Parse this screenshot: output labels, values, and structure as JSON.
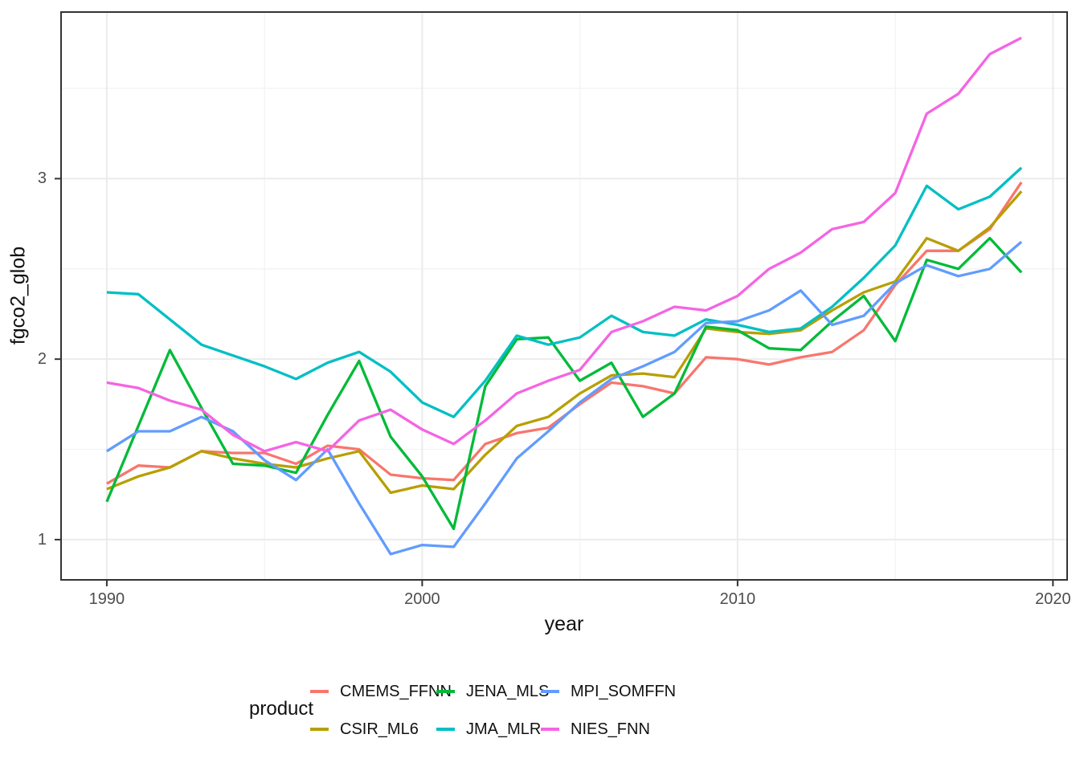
{
  "chart_data": {
    "type": "line",
    "title": "",
    "xlabel": "year",
    "ylabel": "fgco2_glob",
    "legend_title": "product",
    "legend_position": "bottom",
    "grid": true,
    "xlim": [
      1988.55,
      2020.45
    ],
    "ylim": [
      0.777,
      3.923
    ],
    "x_tick_labels": [
      "1990",
      "2000",
      "2010",
      "2020"
    ],
    "x_ticks": [
      1990,
      2000,
      2010,
      2020
    ],
    "x_minor_ticks": [
      1995,
      2005,
      2015
    ],
    "y_tick_labels": [
      "1",
      "2",
      "3"
    ],
    "y_ticks": [
      1,
      2,
      3
    ],
    "y_minor_ticks": [
      1.5,
      2.5,
      3.5
    ],
    "x": [
      1990,
      1991,
      1992,
      1993,
      1994,
      1995,
      1996,
      1997,
      1998,
      1999,
      2000,
      2001,
      2002,
      2003,
      2004,
      2005,
      2006,
      2007,
      2008,
      2009,
      2010,
      2011,
      2012,
      2013,
      2014,
      2015,
      2016,
      2017,
      2018,
      2019
    ],
    "series": [
      {
        "name": "CMEMS_FFNN",
        "color": "#F8766D",
        "values": [
          1.31,
          1.41,
          1.4,
          1.49,
          1.48,
          1.48,
          1.42,
          1.52,
          1.5,
          1.36,
          1.34,
          1.33,
          1.53,
          1.59,
          1.62,
          1.75,
          1.87,
          1.85,
          1.81,
          2.01,
          2.0,
          1.97,
          2.01,
          2.04,
          2.16,
          2.41,
          2.6,
          2.6,
          2.72,
          2.98
        ]
      },
      {
        "name": "CSIR_ML6",
        "color": "#B79F00",
        "values": [
          1.28,
          1.35,
          1.4,
          1.49,
          1.45,
          1.42,
          1.4,
          1.45,
          1.49,
          1.26,
          1.3,
          1.28,
          1.47,
          1.63,
          1.68,
          1.81,
          1.91,
          1.92,
          1.9,
          2.17,
          2.15,
          2.14,
          2.16,
          2.27,
          2.37,
          2.43,
          2.67,
          2.6,
          2.73,
          2.93
        ]
      },
      {
        "name": "JENA_MLS",
        "color": "#00BA38",
        "values": [
          1.21,
          1.63,
          2.05,
          1.73,
          1.42,
          1.41,
          1.37,
          1.69,
          1.99,
          1.57,
          1.35,
          1.06,
          1.85,
          2.11,
          2.12,
          1.88,
          1.98,
          1.68,
          1.81,
          2.18,
          2.16,
          2.06,
          2.05,
          2.21,
          2.35,
          2.1,
          2.55,
          2.5,
          2.67,
          2.48
        ]
      },
      {
        "name": "JMA_MLR",
        "color": "#00BFC4",
        "values": [
          2.37,
          2.36,
          2.22,
          2.08,
          2.02,
          1.96,
          1.89,
          1.98,
          2.04,
          1.93,
          1.76,
          1.68,
          1.88,
          2.13,
          2.08,
          2.12,
          2.24,
          2.15,
          2.13,
          2.22,
          2.19,
          2.15,
          2.17,
          2.29,
          2.45,
          2.63,
          2.96,
          2.83,
          2.9,
          3.06
        ]
      },
      {
        "name": "MPI_SOMFFN",
        "color": "#619CFF",
        "values": [
          1.49,
          1.6,
          1.6,
          1.68,
          1.6,
          1.44,
          1.33,
          1.5,
          1.2,
          0.92,
          0.97,
          0.96,
          1.2,
          1.45,
          1.6,
          1.76,
          1.89,
          1.96,
          2.04,
          2.2,
          2.21,
          2.27,
          2.38,
          2.19,
          2.24,
          2.42,
          2.52,
          2.46,
          2.5,
          2.65
        ]
      },
      {
        "name": "NIES_FNN",
        "color": "#F564E3",
        "values": [
          1.87,
          1.84,
          1.77,
          1.72,
          1.58,
          1.49,
          1.54,
          1.49,
          1.66,
          1.72,
          1.61,
          1.53,
          1.66,
          1.81,
          1.88,
          1.94,
          2.15,
          2.21,
          2.29,
          2.27,
          2.35,
          2.5,
          2.59,
          2.72,
          2.76,
          2.92,
          3.36,
          3.47,
          3.69,
          3.78
        ]
      }
    ],
    "colors": {
      "panel_background": "#ffffff",
      "grid_major": "#ebebeb",
      "grid_minor": "#f3f3f3",
      "panel_border": "#333333",
      "tick_mark": "#333333",
      "tick_text": "#4d4d4d",
      "title_text": "#111111"
    }
  }
}
